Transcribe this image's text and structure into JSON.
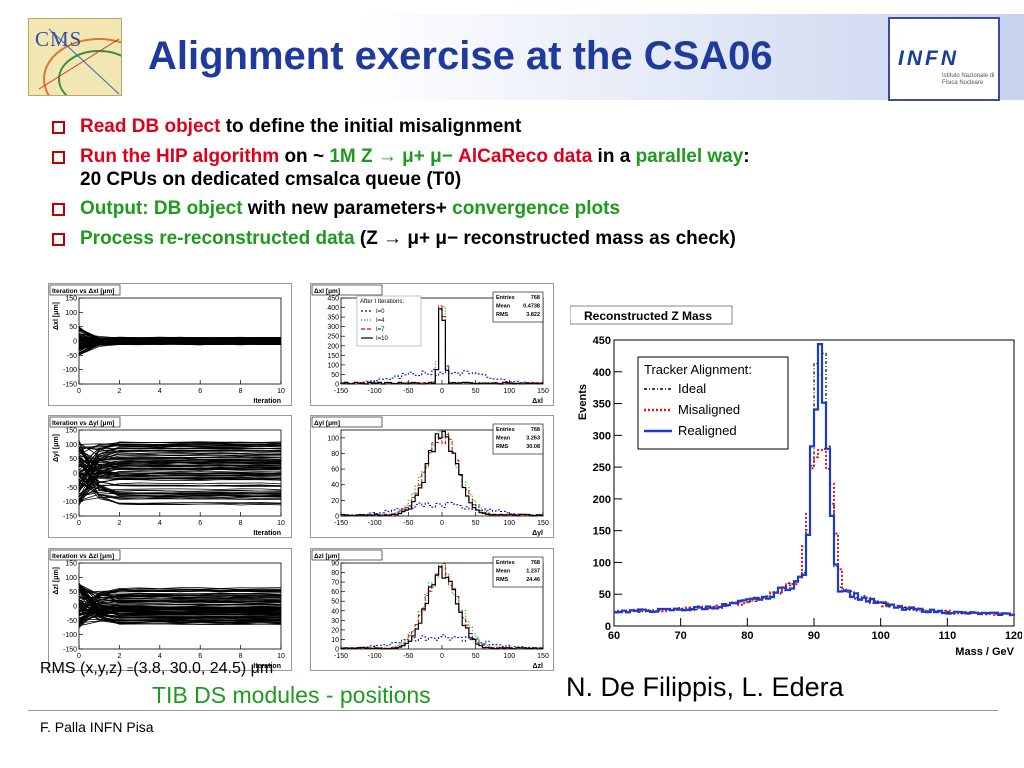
{
  "slide": {
    "title": "Alignment exercise at the CSA06",
    "logos": {
      "cms": "CMS",
      "infn": "INFN",
      "infn_sub": "Istituto Nazionale di Fisica Nucleare"
    }
  },
  "bullets": [
    {
      "parts": [
        {
          "t": "Read DB object",
          "c": "red"
        },
        {
          "t": " to define the initial misalignment",
          "c": ""
        }
      ]
    },
    {
      "parts": [
        {
          "t": "Run the HIP algorithm",
          "c": "red"
        },
        {
          "t": " on ~ ",
          "c": ""
        },
        {
          "t": "1M Z → μ+ μ−",
          "c": "green"
        },
        {
          "t": " AlCaReco data",
          "c": "red"
        },
        {
          "t": " in a ",
          "c": ""
        },
        {
          "t": "parallel way",
          "c": "green"
        },
        {
          "t": ":",
          "c": ""
        }
      ],
      "cont": "20 CPUs on dedicated cmsalca queue (T0)"
    },
    {
      "parts": [
        {
          "t": "Output: DB object",
          "c": "green"
        },
        {
          "t": " with new parameters+ ",
          "c": ""
        },
        {
          "t": "convergence plots",
          "c": "green"
        }
      ]
    },
    {
      "parts": [
        {
          "t": "Process re-reconstructed data",
          "c": "green"
        },
        {
          "t": " (Z → μ+ μ− reconstructed mass as check)",
          "c": ""
        }
      ]
    }
  ],
  "rms": {
    "label": "RMS (x,y,z)",
    "eq": "=",
    "values": "(3.8, 30.0, 24.5)",
    "unit": "μm"
  },
  "tib_caption": "TIB DS modules - positions",
  "authors": "N. De Filippis, L. Edera",
  "footer": "F. Palla INFN Pisa",
  "chart_data": [
    {
      "type": "line",
      "title": "Iteration vs Δxl [μm]",
      "xlabel": "Iteration",
      "ylabel": "Δxl [μm]",
      "xlim": [
        0,
        10
      ],
      "ylim": [
        -150,
        150
      ],
      "xticks": [
        0,
        2,
        4,
        6,
        8,
        10
      ],
      "yticks": [
        -150,
        -100,
        -50,
        0,
        50,
        100,
        150
      ],
      "band": {
        "start_halfwidth": 50,
        "end_halfwidth": 12
      }
    },
    {
      "type": "bar",
      "title": "Δxl [μm]",
      "xlabel": "Δxl",
      "xlim": [
        -150,
        150
      ],
      "ylim": [
        0,
        450
      ],
      "xticks": [
        -150,
        -100,
        -50,
        0,
        50,
        100,
        150
      ],
      "yticks": [
        0,
        50,
        100,
        150,
        200,
        250,
        300,
        350,
        400,
        450
      ],
      "stats": {
        "Entries": "768",
        "Mean": "0.4738",
        "RMS": "3.822"
      },
      "legend_title": "After I Iterations:",
      "series": [
        {
          "name": "I=0",
          "color": "#0000cc",
          "dash": "2,2"
        },
        {
          "name": "I=4",
          "color": "#00aa00",
          "dash": "1,2"
        },
        {
          "name": "I=7",
          "color": "#e00000",
          "dash": "4,2"
        },
        {
          "name": "I=10",
          "color": "#000000",
          "dash": ""
        }
      ],
      "sigma": 3.8,
      "peak": 450
    },
    {
      "type": "line",
      "title": "Iteration vs Δyl [μm]",
      "xlabel": "Iteration",
      "ylabel": "Δyl [μm]",
      "xlim": [
        0,
        10
      ],
      "ylim": [
        -150,
        150
      ],
      "xticks": [
        0,
        2,
        4,
        6,
        8,
        10
      ],
      "yticks": [
        -150,
        -100,
        -50,
        0,
        50,
        100,
        150
      ],
      "band": {
        "start_halfwidth": 115,
        "end_halfwidth": 110
      }
    },
    {
      "type": "bar",
      "title": "Δyl [μm]",
      "xlabel": "Δyl",
      "xlim": [
        -150,
        150
      ],
      "ylim": [
        0,
        110
      ],
      "xticks": [
        -150,
        -100,
        -50,
        0,
        50,
        100,
        150
      ],
      "yticks": [
        0,
        20,
        40,
        60,
        80,
        100
      ],
      "stats": {
        "Entries": "768",
        "Mean": "3.263",
        "RMS": "30.08"
      },
      "sigma": 22,
      "peak": 105
    },
    {
      "type": "line",
      "title": "Iteration vs Δzl [μm]",
      "xlabel": "Iteration",
      "ylabel": "Δzl [μm]",
      "xlim": [
        0,
        10
      ],
      "ylim": [
        -150,
        150
      ],
      "xticks": [
        0,
        2,
        4,
        6,
        8,
        10
      ],
      "yticks": [
        -150,
        -100,
        -50,
        0,
        50,
        100,
        150
      ],
      "band": {
        "start_halfwidth": 80,
        "end_halfwidth": 70
      }
    },
    {
      "type": "bar",
      "title": "Δzl [μm]",
      "xlabel": "Δzl",
      "xlim": [
        -150,
        150
      ],
      "ylim": [
        0,
        90
      ],
      "xticks": [
        -150,
        -100,
        -50,
        0,
        50,
        100,
        150
      ],
      "yticks": [
        0,
        10,
        20,
        30,
        40,
        50,
        60,
        70,
        80,
        90
      ],
      "stats": {
        "Entries": "768",
        "Mean": "1.237",
        "RMS": "24.46"
      },
      "sigma": 22,
      "peak": 82
    },
    {
      "type": "line",
      "title": "Reconstructed Z Mass",
      "xlabel": "Mass / GeV",
      "ylabel": "Events",
      "xlim": [
        60,
        120
      ],
      "ylim": [
        0,
        450
      ],
      "xticks": [
        60,
        70,
        80,
        90,
        100,
        110,
        120
      ],
      "yticks": [
        0,
        50,
        100,
        150,
        200,
        250,
        300,
        350,
        400,
        450
      ],
      "legend_title": "Tracker Alignment:",
      "series": [
        {
          "name": "Ideal",
          "color": "#000000",
          "dash": "3,2,1,2",
          "peak": 430,
          "width": 1.2
        },
        {
          "name": "Misaligned",
          "color": "#ee1111",
          "dash": "2,2",
          "peak": 305,
          "width": 2
        },
        {
          "name": "Realigned",
          "color": "#1a3ccc",
          "dash": "",
          "peak": 410,
          "width": 2.2
        }
      ]
    }
  ]
}
